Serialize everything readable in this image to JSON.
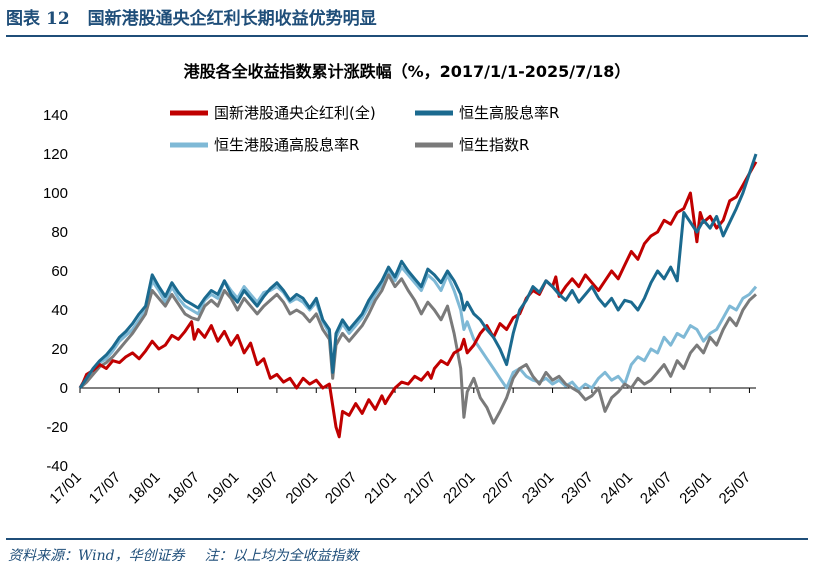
{
  "header": {
    "prefix": "图表",
    "number": "12",
    "title": "国新港股通央企红利长期收益优势明显"
  },
  "footer": {
    "source": "资料来源：Wind，华创证券",
    "note": "注：以上均为全收益指数"
  },
  "colors": {
    "brand": "#1f4e79",
    "red": "#c00000",
    "dark_blue": "#1b6a8f",
    "light_blue": "#7fb9d6",
    "gray": "#7a7a7a"
  },
  "chart_data": {
    "type": "line",
    "title": "港股各全收益指数累计涨跌幅（%，2017/1/1-2025/7/18）",
    "ylim": [
      -40,
      140
    ],
    "yticks": [
      -40,
      -20,
      0,
      20,
      40,
      60,
      80,
      100,
      120,
      140
    ],
    "xticks": [
      "17/01",
      "17/07",
      "18/01",
      "18/07",
      "19/01",
      "19/07",
      "20/01",
      "20/07",
      "21/01",
      "21/07",
      "22/01",
      "22/07",
      "23/01",
      "23/07",
      "24/01",
      "24/07",
      "25/01",
      "25/07"
    ],
    "legend_position": "top",
    "series": [
      {
        "name": "国新港股通央企红利(全)",
        "color": "#c00000",
        "t": [
          0,
          0.5,
          1,
          2,
          3,
          4,
          5,
          6,
          7,
          8,
          9,
          10,
          11,
          12,
          13,
          14,
          15,
          16,
          17,
          17.4,
          18,
          19,
          20,
          21,
          22,
          23,
          24,
          25,
          26,
          27,
          28,
          29,
          30,
          31,
          32,
          33,
          34,
          35,
          36,
          37,
          38,
          39,
          39.5,
          40,
          41,
          42,
          43,
          44,
          45,
          46,
          46.5,
          47,
          48,
          49,
          50,
          51,
          52,
          53,
          53.5,
          54,
          55,
          56,
          57,
          58,
          58.5,
          59,
          60,
          61,
          62,
          63,
          64,
          65,
          66,
          67,
          68,
          69,
          70,
          71,
          72,
          72.5,
          73,
          74,
          75,
          76,
          77,
          78,
          79,
          80,
          81,
          82,
          83,
          84,
          85,
          86,
          87,
          88,
          89,
          90,
          91,
          92,
          93,
          94,
          94.5,
          95,
          96,
          97,
          98,
          99,
          100,
          101,
          102,
          103
        ],
        "v": [
          0,
          3,
          7,
          9,
          12,
          10,
          14,
          13,
          16,
          18,
          15,
          19,
          24,
          20,
          22,
          27,
          25,
          29,
          34,
          25,
          30,
          26,
          32,
          24,
          29,
          22,
          27,
          18,
          23,
          12,
          15,
          5,
          7,
          3,
          5,
          0,
          5,
          2,
          4,
          0,
          2,
          -20,
          -25,
          -12,
          -14,
          -8,
          -13,
          -6,
          -11,
          -4,
          -8,
          -5,
          0,
          3,
          2,
          6,
          4,
          8,
          5,
          10,
          14,
          12,
          18,
          20,
          25,
          18,
          22,
          28,
          32,
          26,
          33,
          30,
          36,
          38,
          46,
          50,
          48,
          55,
          52,
          57,
          47,
          52,
          56,
          52,
          58,
          54,
          50,
          55,
          60,
          56,
          63,
          70,
          66,
          74,
          78,
          80,
          86,
          84,
          90,
          92,
          100,
          75,
          90,
          85,
          88,
          82,
          86,
          96,
          98,
          104,
          110,
          116,
          118
        ]
      },
      {
        "name": "恒生高股息率R",
        "color": "#1b6a8f",
        "t": [
          0,
          1,
          2,
          3,
          4,
          5,
          6,
          7,
          8,
          9,
          10,
          11,
          12,
          13,
          14,
          15,
          16,
          17,
          18,
          19,
          20,
          21,
          22,
          23,
          24,
          25,
          26,
          27,
          28,
          29,
          30,
          31,
          32,
          33,
          34,
          35,
          36,
          37,
          38,
          38.5,
          39,
          40,
          41,
          42,
          43,
          44,
          45,
          46,
          47,
          48,
          49,
          50,
          51,
          52,
          53,
          54,
          55,
          56,
          57,
          58,
          58.5,
          59,
          60,
          61,
          62,
          63,
          64,
          65,
          66,
          67,
          68,
          69,
          70,
          71,
          72,
          73,
          74,
          75,
          76,
          77,
          78,
          79,
          80,
          81,
          82,
          83,
          84,
          85,
          86,
          87,
          88,
          89,
          90,
          91,
          92,
          93,
          94,
          95,
          96,
          97,
          98,
          99,
          100,
          101,
          102,
          103
        ],
        "v": [
          0,
          5,
          10,
          14,
          17,
          21,
          26,
          29,
          33,
          38,
          42,
          58,
          52,
          47,
          54,
          49,
          45,
          43,
          41,
          46,
          50,
          48,
          55,
          48,
          44,
          50,
          46,
          42,
          47,
          51,
          54,
          50,
          45,
          48,
          46,
          41,
          46,
          35,
          30,
          8,
          28,
          35,
          30,
          34,
          38,
          45,
          50,
          55,
          62,
          57,
          65,
          60,
          56,
          52,
          61,
          58,
          54,
          60,
          55,
          48,
          40,
          44,
          38,
          35,
          30,
          26,
          20,
          12,
          28,
          40,
          45,
          52,
          49,
          55,
          52,
          48,
          45,
          50,
          44,
          48,
          52,
          46,
          42,
          46,
          40,
          45,
          44,
          40,
          46,
          54,
          60,
          56,
          62,
          55,
          90,
          85,
          80,
          86,
          82,
          88,
          78,
          85,
          92,
          100,
          110,
          120,
          128
        ]
      },
      {
        "name": "恒生港股通高股息率R",
        "color": "#7fb9d6",
        "t": [
          0,
          1,
          2,
          3,
          4,
          5,
          6,
          7,
          8,
          9,
          10,
          11,
          12,
          13,
          14,
          15,
          16,
          17,
          18,
          19,
          20,
          21,
          22,
          23,
          24,
          25,
          26,
          27,
          28,
          29,
          30,
          31,
          32,
          33,
          34,
          35,
          36,
          37,
          38,
          38.5,
          39,
          40,
          41,
          42,
          43,
          44,
          45,
          46,
          47,
          48,
          49,
          50,
          51,
          52,
          53,
          54,
          55,
          56,
          57,
          58,
          58.5,
          59,
          60,
          61,
          62,
          63,
          64,
          65,
          66,
          67,
          68,
          69,
          70,
          71,
          72,
          73,
          74,
          75,
          76,
          77,
          78,
          79,
          80,
          81,
          82,
          83,
          84,
          85,
          86,
          87,
          88,
          89,
          90,
          91,
          92,
          93,
          94,
          95,
          96,
          97,
          98,
          99,
          100,
          101,
          102,
          103
        ],
        "v": [
          0,
          4,
          9,
          13,
          15,
          19,
          24,
          27,
          30,
          35,
          40,
          55,
          50,
          44,
          52,
          46,
          42,
          40,
          38,
          45,
          48,
          46,
          55,
          50,
          46,
          52,
          48,
          44,
          49,
          50,
          52,
          49,
          44,
          46,
          44,
          40,
          44,
          34,
          28,
          7,
          26,
          33,
          28,
          32,
          36,
          42,
          48,
          53,
          60,
          55,
          62,
          58,
          54,
          50,
          58,
          55,
          50,
          58,
          50,
          40,
          30,
          34,
          25,
          20,
          15,
          10,
          5,
          0,
          8,
          10,
          6,
          4,
          3,
          5,
          2,
          4,
          1,
          3,
          -1,
          2,
          0,
          5,
          8,
          4,
          6,
          2,
          12,
          16,
          14,
          20,
          18,
          26,
          22,
          28,
          26,
          32,
          30,
          24,
          28,
          30,
          36,
          42,
          40,
          46,
          48,
          52,
          55
        ]
      },
      {
        "name": "恒生指数R",
        "color": "#7a7a7a",
        "t": [
          0,
          1,
          2,
          3,
          4,
          5,
          6,
          7,
          8,
          9,
          10,
          11,
          12,
          13,
          14,
          15,
          16,
          17,
          18,
          19,
          20,
          21,
          22,
          23,
          24,
          25,
          26,
          27,
          28,
          29,
          30,
          31,
          32,
          33,
          34,
          35,
          36,
          37,
          38,
          38.5,
          39,
          40,
          41,
          42,
          43,
          44,
          45,
          46,
          47,
          48,
          49,
          50,
          51,
          52,
          53,
          54,
          55,
          56,
          57,
          58,
          58.5,
          59,
          60,
          61,
          62,
          63,
          64,
          65,
          66,
          67,
          68,
          69,
          70,
          71,
          72,
          73,
          74,
          75,
          76,
          77,
          78,
          79,
          80,
          81,
          82,
          83,
          84,
          85,
          86,
          87,
          88,
          89,
          90,
          91,
          92,
          93,
          94,
          95,
          96,
          97,
          98,
          99,
          100,
          101,
          102,
          103
        ],
        "v": [
          0,
          3,
          7,
          11,
          13,
          16,
          20,
          24,
          28,
          33,
          38,
          50,
          46,
          42,
          48,
          43,
          38,
          36,
          35,
          42,
          45,
          42,
          50,
          46,
          40,
          46,
          42,
          38,
          42,
          45,
          48,
          44,
          38,
          40,
          38,
          34,
          38,
          30,
          25,
          5,
          22,
          28,
          24,
          28,
          32,
          38,
          45,
          50,
          58,
          52,
          56,
          50,
          45,
          38,
          44,
          40,
          35,
          42,
          28,
          10,
          -15,
          -2,
          5,
          -5,
          -10,
          -18,
          -12,
          -5,
          5,
          10,
          12,
          6,
          2,
          8,
          4,
          6,
          2,
          0,
          -2,
          -6,
          -4,
          0,
          -12,
          -5,
          -2,
          2,
          0,
          5,
          2,
          4,
          8,
          12,
          6,
          14,
          10,
          18,
          22,
          18,
          26,
          22,
          30,
          36,
          32,
          40,
          45,
          48,
          52
        ]
      }
    ]
  }
}
